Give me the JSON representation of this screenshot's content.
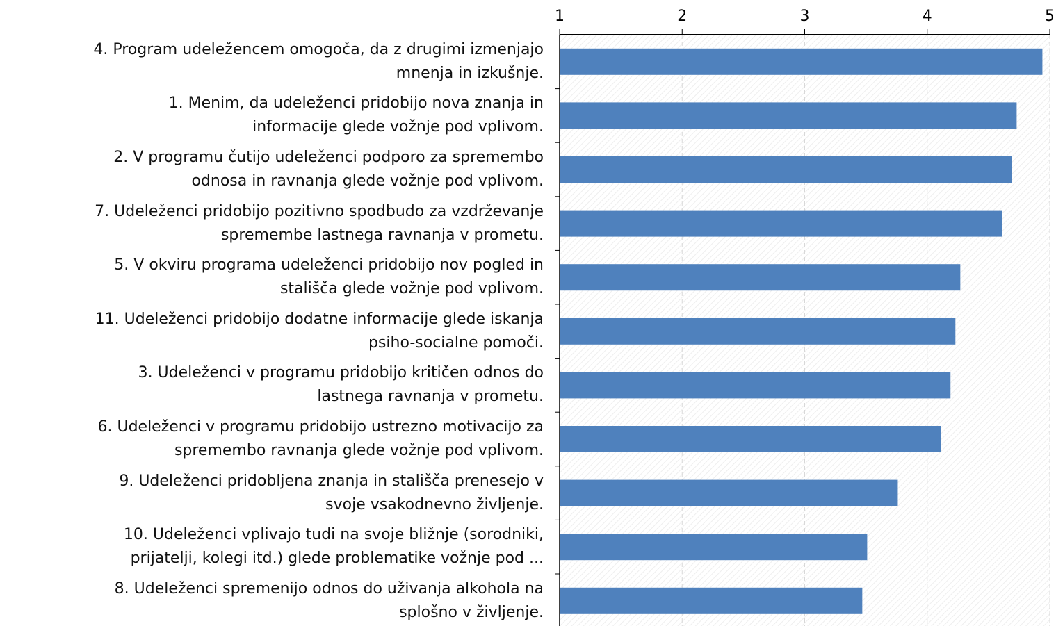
{
  "chart_data": {
    "type": "barh",
    "categories": [
      "4. Program udeležencem omogoča, da z drugimi izmenjajo\nmnenja in izkušnje.",
      "1. Menim, da udeleženci pridobijo nova znanja in\ninformacije glede vožnje pod vplivom.",
      "2. V programu čutijo udeleženci podporo za spremembo\nodnosa in ravnanja glede vožnje pod vplivom.",
      "7. Udeleženci pridobijo pozitivno spodbudo za vzdrževanje\nspremembe lastnega ravnanja v prometu.",
      "5. V okviru programa udeleženci pridobijo nov pogled in\nstališča glede vožnje pod vplivom.",
      "11. Udeleženci pridobijo dodatne informacije glede iskanja\npsiho-socialne pomoči.",
      "3. Udeleženci v programu pridobijo kritičen odnos do\nlastnega ravnanja v prometu.",
      "6. Udeleženci v programu pridobijo ustrezno motivacijo za\nspremembo ravnanja glede vožnje pod vplivom.",
      "9. Udeleženci pridobljena znanja in stališča prenesejo v\nsvoje vsakodnevno življenje.",
      "10. Udeleženci vplivajo tudi na svoje bližnje (sorodniki,\nprijatelji, kolegi itd.) glede problematike vožnje pod ...",
      "8. Udeleženci spremenijo odnos do uživanja alkohola na\nsplošno v življenje."
    ],
    "values": [
      4.94,
      4.73,
      4.69,
      4.61,
      4.27,
      4.23,
      4.19,
      4.11,
      3.76,
      3.51,
      3.47
    ],
    "color": "#4f81bd",
    "xlim": [
      1,
      5
    ],
    "xticks": [
      1,
      2,
      3,
      4,
      5
    ],
    "grid": true
  }
}
